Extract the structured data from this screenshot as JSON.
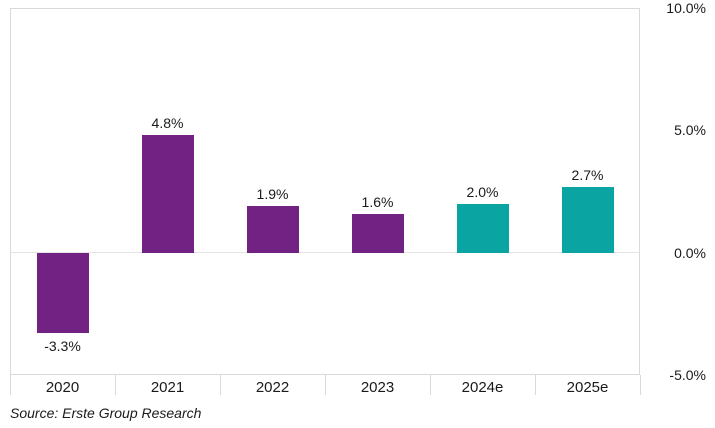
{
  "chart_data": {
    "type": "bar",
    "title": "",
    "categories": [
      "2020",
      "2021",
      "2022",
      "2023",
      "2024e",
      "2025e"
    ],
    "values": [
      -3.3,
      4.8,
      1.9,
      1.6,
      2.0,
      2.7
    ],
    "data_labels": [
      "-3.3%",
      "4.8%",
      "1.9%",
      "1.6%",
      "2.0%",
      "2.7%"
    ],
    "bar_colors": [
      "#722282",
      "#722282",
      "#722282",
      "#722282",
      "#0aa5a3",
      "#0aa5a3"
    ],
    "ylim": [
      -5,
      10
    ],
    "yticks": [
      {
        "value": 10,
        "label": "10.0%"
      },
      {
        "value": 5,
        "label": "5.0%"
      },
      {
        "value": 0,
        "label": "0.0%"
      },
      {
        "value": -5,
        "label": "-5.0%"
      }
    ],
    "grid": false,
    "legend": false,
    "y_axis_side": "right",
    "xlabel": "",
    "ylabel": ""
  },
  "footer": {
    "source": "Source: Erste Group Research"
  },
  "colors": {
    "bar_actual": "#722282",
    "bar_estimate": "#0aa5a3",
    "axis_border": "#d9d9d9",
    "text": "#1a1a1a"
  }
}
